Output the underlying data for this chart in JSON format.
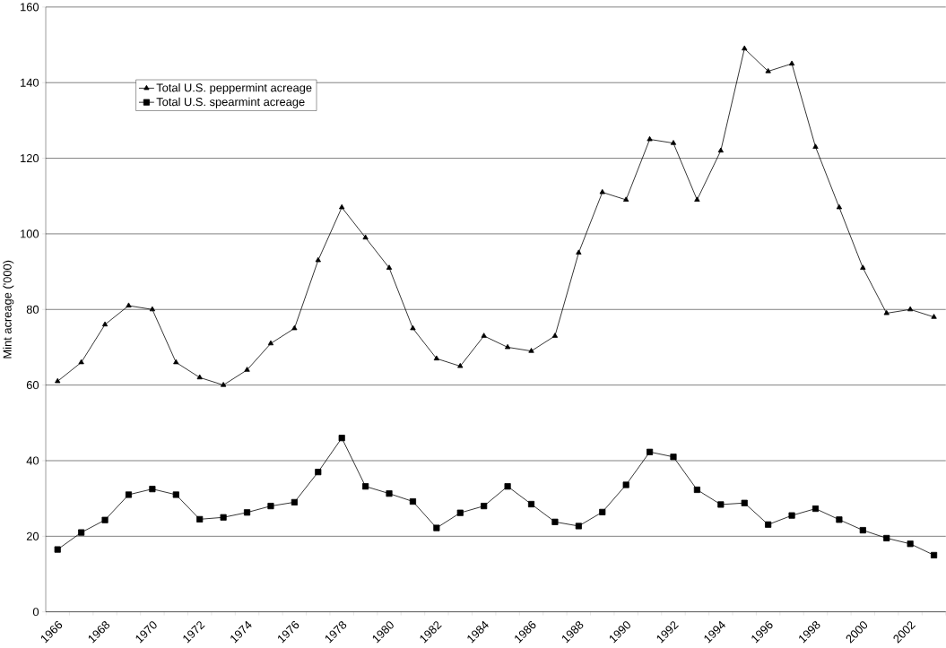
{
  "chart_data": {
    "type": "line",
    "ylabel": "Mint acreage ('000)",
    "categories": [
      "1966",
      null,
      "1968",
      null,
      "1970",
      null,
      "1972",
      null,
      "1974",
      null,
      "1976",
      null,
      "1978",
      null,
      "1980",
      null,
      "1982",
      null,
      "1984",
      null,
      "1986",
      null,
      "1988",
      null,
      "1990",
      null,
      "1992",
      null,
      "1994",
      null,
      "1996",
      null,
      "1998",
      null,
      "2000",
      null,
      "2002",
      null
    ],
    "series": [
      {
        "name": "Total U.S. peppermint acreage",
        "color": "#000000",
        "marker": "triangle",
        "values": [
          61,
          66,
          76,
          81,
          80,
          66,
          62,
          60,
          64,
          71,
          75,
          93,
          107,
          99,
          91,
          75,
          67,
          65,
          73,
          70,
          69,
          73,
          95,
          111,
          109,
          125,
          124,
          109,
          122,
          149,
          143,
          145,
          123,
          107,
          91,
          79,
          80,
          78
        ]
      },
      {
        "name": "Total U.S. spearmint acreage",
        "color": "#000000",
        "marker": "square",
        "values": [
          16.5,
          21,
          24.3,
          31,
          32.5,
          31,
          24.5,
          25,
          26.3,
          28,
          29,
          37,
          46,
          33.2,
          31.3,
          29.2,
          22.2,
          26.2,
          28,
          33.2,
          28.5,
          23.8,
          22.7,
          26.4,
          33.6,
          42.3,
          41,
          32.3,
          28.4,
          28.8,
          23.1,
          25.5,
          27.3,
          24.4,
          21.6,
          19.5,
          18,
          15
        ]
      }
    ],
    "ylim": [
      0,
      160
    ],
    "yticks": [
      0,
      20,
      40,
      60,
      80,
      100,
      120,
      140,
      160
    ],
    "grid": "y",
    "legend": "top left",
    "line_style": "solid"
  }
}
